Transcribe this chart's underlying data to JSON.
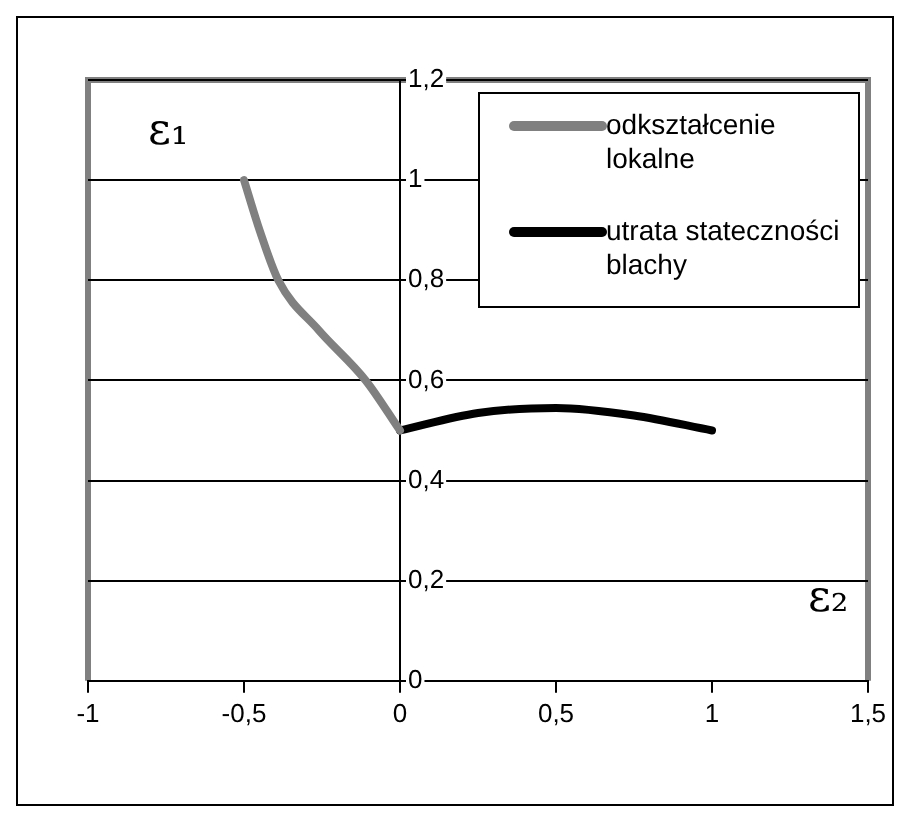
{
  "chart_data": {
    "type": "line",
    "xlabel": "ε₂",
    "ylabel": "ε₁",
    "xlim": [
      -1,
      1.5
    ],
    "xticks": [
      -1,
      {
        "value": -0.5,
        "label": "-0,5"
      },
      0,
      {
        "value": 0.5,
        "label": "0,5"
      },
      1,
      {
        "value": 1.5,
        "label": "1,5"
      }
    ],
    "ylim": [
      0,
      1.2
    ],
    "yticks": [
      0,
      {
        "value": 0.2,
        "label": "0,2"
      },
      {
        "value": 0.4,
        "label": "0,4"
      },
      {
        "value": 0.6,
        "label": "0,6"
      },
      {
        "value": 0.8,
        "label": "0,8"
      },
      1,
      {
        "value": 1.2,
        "label": "1,2"
      }
    ],
    "grid": "y",
    "legend": "top right",
    "marker": "none",
    "line_style": "solid",
    "series": [
      {
        "name": "odkształcenie lokalne",
        "color": "#808080",
        "x": [
          -0.5,
          -0.45,
          -0.39,
          -0.26,
          -0.11,
          0
        ],
        "values": [
          1,
          0.9,
          0.8,
          0.7,
          0.6,
          0.5
        ]
      },
      {
        "name": "utrata stateczności blachy",
        "color": "#000000",
        "x": [
          0,
          0.25,
          0.5,
          0.75,
          1
        ],
        "values": [
          0.5,
          0.535,
          0.545,
          0.53,
          0.5
        ]
      }
    ]
  }
}
